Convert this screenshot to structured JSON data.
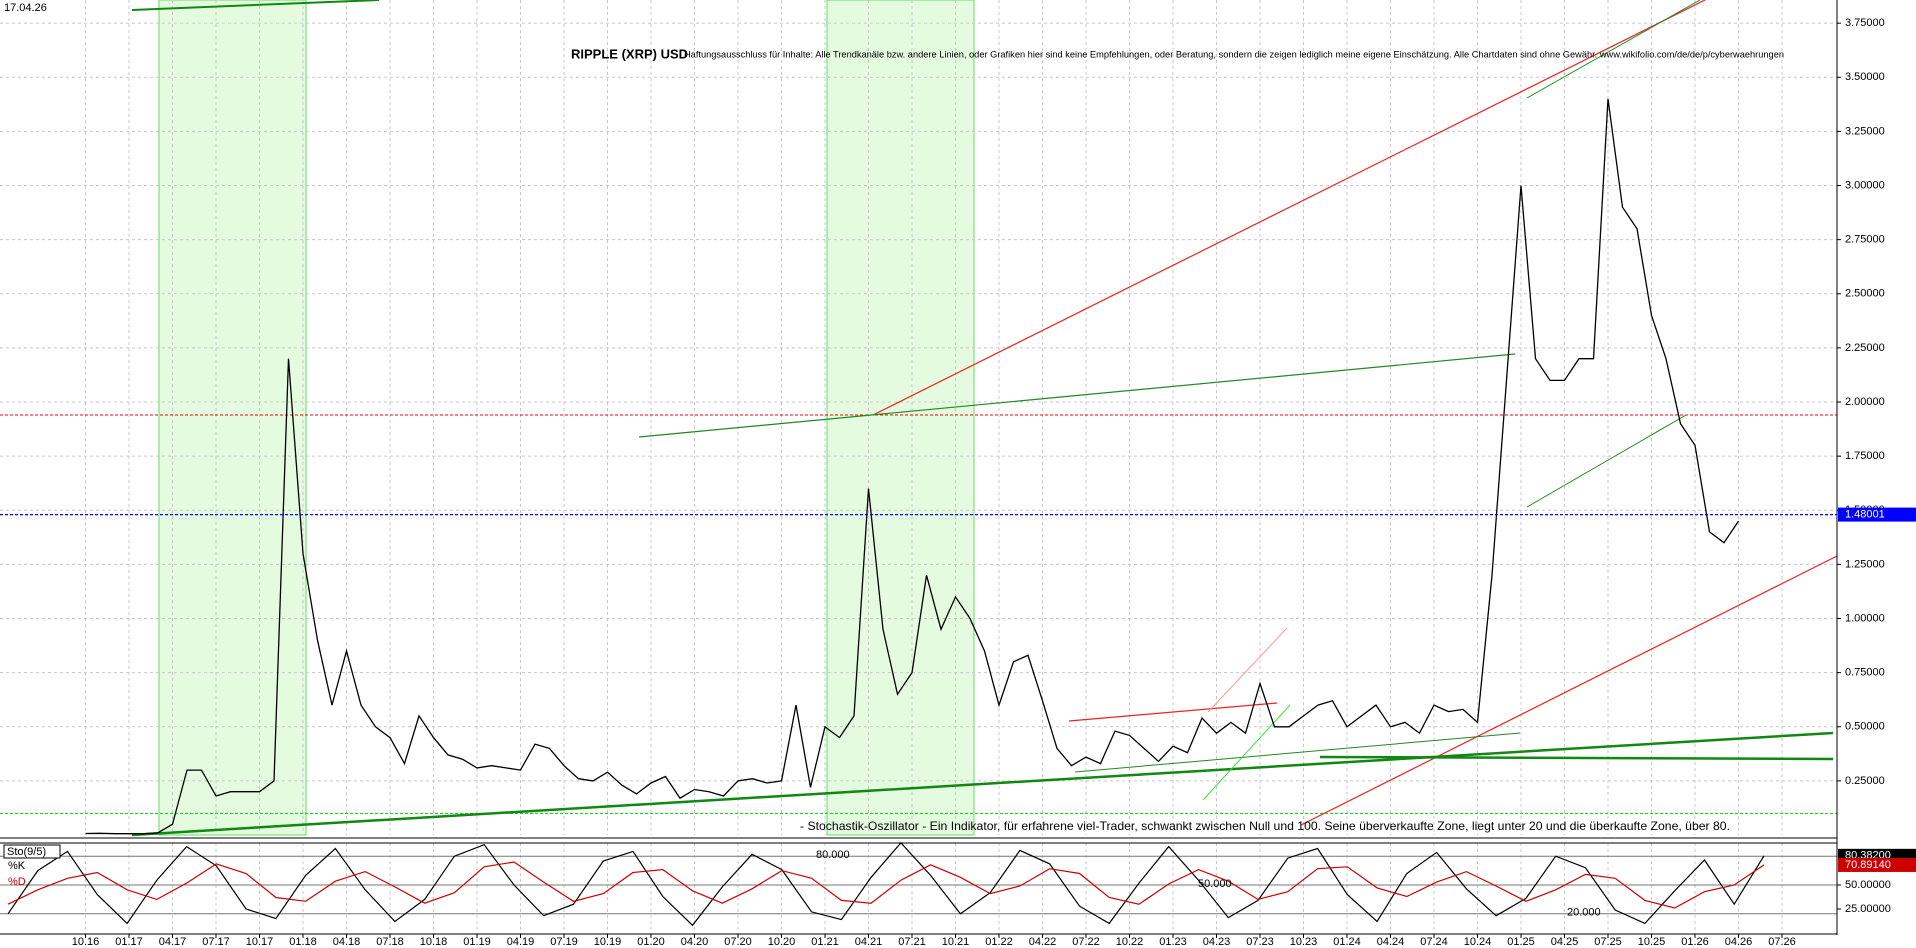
{
  "chart_data": [
    {
      "type": "line",
      "title": "RIPPLE (XRP) USD",
      "subtitle": "Haftungsausschluss für Inhalte: Alle Trendkanäle bzw. andere Linien, oder Grafiken hier sind keine Empfehlungen, oder Beratung, sondern die zeigen lediglich meine eigene Einschätzung. Alle Chartdaten sind ohne Gewähr. www.wikifolio.com/de/de/p/cyberwaehrungen",
      "date": "17.04.26",
      "categories": [
        "10.16",
        null,
        null,
        "01.17",
        null,
        null,
        "04.17",
        null,
        null,
        "07.17",
        null,
        null,
        "10.17",
        null,
        null,
        "01.18",
        null,
        null,
        "04.18",
        null,
        null,
        "07.18",
        null,
        null,
        "10.18",
        null,
        null,
        "01.19",
        null,
        null,
        "04.19",
        null,
        null,
        "07.19",
        null,
        null,
        "10.19",
        null,
        null,
        "01.20",
        null,
        null,
        "04.20",
        null,
        null,
        "07.20",
        null,
        null,
        "10.20",
        null,
        null,
        "01.21",
        null,
        null,
        "04.21",
        null,
        null,
        "07.21",
        null,
        null,
        "10.21",
        null,
        null,
        "01.22",
        null,
        null,
        "04.22",
        null,
        null,
        "07.22",
        null,
        null,
        "10.22",
        null,
        null,
        "01.23",
        null,
        null,
        "04.23",
        null,
        null,
        "07.23",
        null,
        null,
        "10.23",
        null,
        null,
        "01.24",
        null,
        null,
        "04.24",
        null,
        null,
        "07.24",
        null,
        null,
        "10.24",
        null,
        null,
        "01.25",
        null,
        null,
        "04.25",
        null,
        null,
        "07.25",
        null,
        null,
        "10.25",
        null,
        null,
        "01.26",
        null,
        null,
        "04.26",
        null,
        null,
        "07.26"
      ],
      "series": [
        {
          "color": "#000000",
          "values": [
            0.007,
            0.008,
            0.006,
            0.006,
            0.006,
            0.01,
            0.05,
            0.3,
            0.3,
            0.18,
            0.2,
            0.2,
            0.2,
            0.25,
            2.2,
            1.3,
            0.9,
            0.6,
            0.85,
            0.6,
            0.5,
            0.45,
            0.33,
            0.55,
            0.45,
            0.37,
            0.35,
            0.31,
            0.32,
            0.31,
            0.3,
            0.42,
            0.4,
            0.32,
            0.26,
            0.25,
            0.29,
            0.23,
            0.19,
            0.24,
            0.27,
            0.17,
            0.21,
            0.2,
            0.18,
            0.25,
            0.26,
            0.24,
            0.25,
            0.6,
            0.22,
            0.5,
            0.45,
            0.55,
            1.6,
            0.95,
            0.65,
            0.75,
            1.2,
            0.95,
            1.1,
            1.0,
            0.85,
            0.6,
            0.8,
            0.83,
            0.62,
            0.4,
            0.32,
            0.36,
            0.33,
            0.48,
            0.46,
            0.4,
            0.34,
            0.41,
            0.38,
            0.54,
            0.47,
            0.52,
            0.47,
            0.7,
            0.5,
            0.5,
            0.55,
            0.6,
            0.62,
            0.5,
            0.55,
            0.6,
            0.5,
            0.52,
            0.47,
            0.6,
            0.57,
            0.58,
            0.52,
            1.2,
            2.1,
            3.0,
            2.2,
            2.1,
            2.1,
            2.2,
            2.2,
            3.4,
            2.9,
            2.8,
            2.4,
            2.2,
            1.9,
            1.8,
            1.4,
            1.35,
            1.45,
            null,
            null,
            null
          ]
        }
      ],
      "ylim": [
        0,
        3.857
      ],
      "yticks": [
        {
          "value": 0.25,
          "label": "0.25000"
        },
        {
          "value": 0.5,
          "label": "0.50000"
        },
        {
          "value": 0.75,
          "label": "0.75000"
        },
        {
          "value": 1,
          "label": "1.00000"
        },
        {
          "value": 1.25,
          "label": "1.25000"
        },
        {
          "value": 1.5,
          "label": "1.50000"
        },
        {
          "value": 1.75,
          "label": "1.75000"
        },
        {
          "value": 2,
          "label": "2.00000"
        },
        {
          "value": 2.25,
          "label": "2.25000"
        },
        {
          "value": 2.5,
          "label": "2.50000"
        },
        {
          "value": 2.75,
          "label": "2.75000"
        },
        {
          "value": 3,
          "label": "3.00000"
        },
        {
          "value": 3.25,
          "label": "3.25000"
        },
        {
          "value": 3.5,
          "label": "3.50000"
        },
        {
          "value": 3.75,
          "label": "3.75000"
        }
      ],
      "grid": true,
      "price_line": {
        "value": 1.48001,
        "label": "1.48001",
        "color": "#0000ff"
      },
      "hlines": [
        {
          "value": 1.94,
          "color": "#ff0000"
        },
        {
          "value": 0.1,
          "color": "#00cc00"
        }
      ]
    },
    {
      "type": "line",
      "title": "Sto(9/5)",
      "note": "- Stochastik-Oszillator - Ein Indikator, für erfahrene viel-Trader, schwankt zwischen Null und 100. Seine überverkaufte Zone, liegt unter 20 und die überkaufte Zone, über 80.",
      "ylim": [
        0,
        100
      ],
      "yticks": [
        {
          "value": 25,
          "label": "25.00000"
        },
        {
          "value": 50,
          "label": "50.00000"
        }
      ],
      "levels": [
        {
          "value": 80,
          "label": "80.000"
        },
        {
          "value": 50,
          "label": "50.000"
        },
        {
          "value": 20,
          "label": "20.000"
        }
      ],
      "series": [
        {
          "name": "%K",
          "color": "#000000",
          "values": [
            20,
            65,
            85,
            40,
            10,
            55,
            90,
            70,
            25,
            15,
            60,
            88,
            45,
            12,
            35,
            80,
            92,
            50,
            18,
            30,
            75,
            85,
            38,
            8,
            48,
            82,
            66,
            22,
            14,
            58,
            94,
            60,
            20,
            42,
            86,
            72,
            28,
            10,
            52,
            90,
            55,
            16,
            34,
            78,
            88,
            40,
            12,
            62,
            84,
            46,
            18,
            36,
            80,
            68,
            24,
            10,
            44,
            76,
            30,
            80.382
          ],
          "value_labels": {
            "59": "80.38200"
          }
        },
        {
          "name": "%D",
          "color": "#cc0000",
          "values": [
            30,
            45,
            57,
            63,
            45,
            35,
            52,
            72,
            62,
            37,
            33,
            54,
            64,
            48,
            31,
            42,
            69,
            74,
            53,
            33,
            41,
            63,
            66,
            44,
            31,
            46,
            65,
            57,
            34,
            31,
            55,
            71,
            58,
            41,
            49,
            67,
            62,
            37,
            30,
            51,
            66,
            54,
            35,
            43,
            67,
            69,
            47,
            38,
            53,
            64,
            49,
            33,
            45,
            61,
            57,
            34,
            26,
            43,
            50,
            70.8914
          ],
          "value_labels": {
            "59": "70.89140"
          }
        }
      ]
    }
  ]
}
